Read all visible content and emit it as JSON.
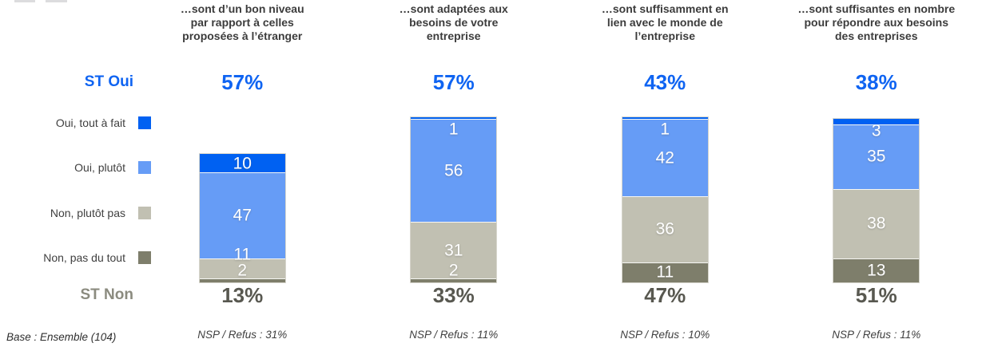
{
  "page": {
    "st_oui_label": "ST Oui",
    "st_non_label": "ST Non",
    "base_note": "Base : Ensemble (104)"
  },
  "chart_data": {
    "type": "bar",
    "stacked": true,
    "orientation": "vertical",
    "unit": "%",
    "legend_position": "left",
    "categories": [
      "…sont d’un bon niveau\npar rapport à celles\nproposées à l’étranger",
      "…sont adaptées aux\nbesoins de votre\nentreprise",
      "…sont suffisamment en\nlien avec le monde de\nl’entreprise",
      "…sont suffisantes en nombre\npour répondre aux besoins\ndes entreprises"
    ],
    "series": [
      {
        "name": "Oui, tout à fait",
        "color": "#0061f2",
        "values": [
          10,
          1,
          1,
          3
        ]
      },
      {
        "name": "Oui, plutôt",
        "color": "#669cf6",
        "values": [
          47,
          56,
          42,
          35
        ]
      },
      {
        "name": "Non, plutôt pas",
        "color": "#c1c0b2",
        "values": [
          11,
          31,
          36,
          38
        ]
      },
      {
        "name": "Non, pas du tout",
        "color": "#7e7e6b",
        "values": [
          2,
          2,
          11,
          13
        ]
      }
    ],
    "st_oui": [
      "57%",
      "57%",
      "43%",
      "38%"
    ],
    "st_non": [
      "13%",
      "33%",
      "47%",
      "51%"
    ],
    "nsp_refus": [
      "NSP / Refus : 31%",
      "NSP / Refus : 11%",
      "NSP / Refus : 10%",
      "NSP / Refus : 11%"
    ],
    "colors": {
      "st_oui_text": "#0f64f2",
      "st_non_value_text": "#585850",
      "st_non_label_text": "#8b8b7f",
      "header_text": "#3c3c3c"
    }
  }
}
